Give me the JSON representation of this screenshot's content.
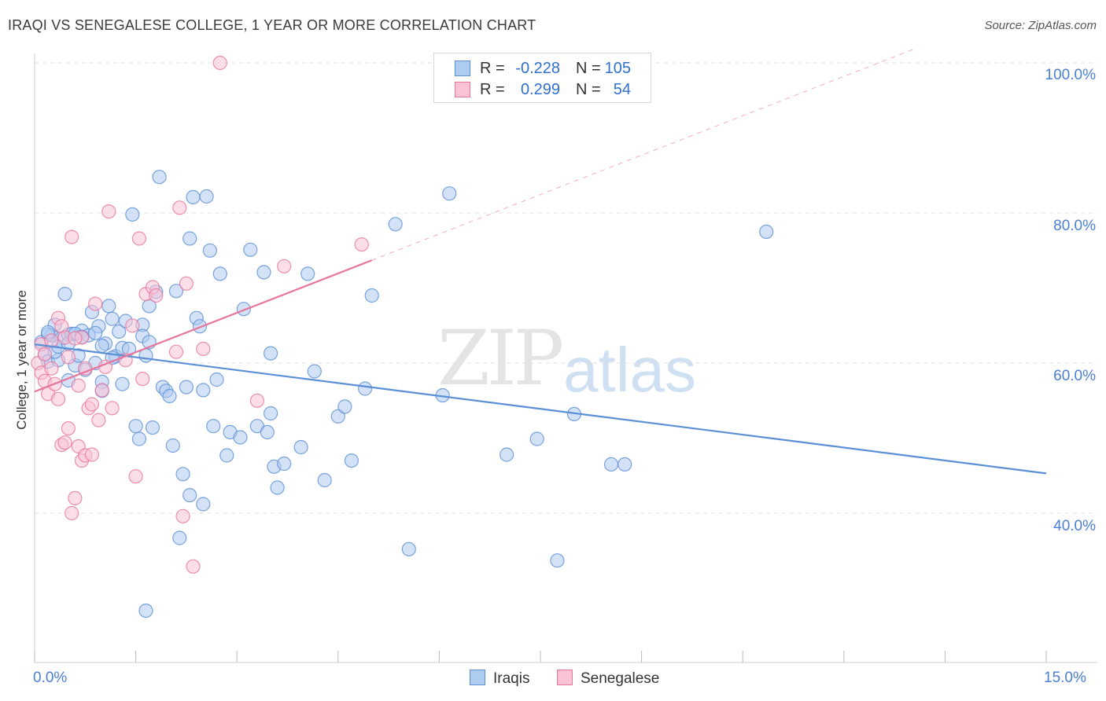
{
  "title": "IRAQI VS SENEGALESE COLLEGE, 1 YEAR OR MORE CORRELATION CHART",
  "source": "Source: ZipAtlas.com",
  "watermark": {
    "zip": "ZIP",
    "atlas": "atlas"
  },
  "stats": [
    {
      "r_label": "R =",
      "r_value": "-0.228",
      "n_label": "N =",
      "n_value": "105",
      "color": "#aecbf0",
      "border": "#5b8fd6"
    },
    {
      "r_label": "R =",
      "r_value": "0.299",
      "n_label": "N =",
      "n_value": "54",
      "color": "#f9c3d5",
      "border": "#e8769c"
    }
  ],
  "legend": [
    {
      "label": "Iraqis",
      "color": "#aecbf0",
      "border": "#5b8fd6"
    },
    {
      "label": "Senegalese",
      "color": "#f9c3d5",
      "border": "#e8769c"
    }
  ],
  "chart_data": {
    "type": "scatter",
    "title": "IRAQI VS SENEGALESE COLLEGE, 1 YEAR OR MORE CORRELATION CHART",
    "xlabel": "",
    "ylabel": "College, 1 year or more",
    "xlim": [
      0,
      15
    ],
    "ylim": [
      20,
      102
    ],
    "x_tick_labels": [
      "0.0%",
      "15.0%"
    ],
    "y_ticks": [
      40,
      60,
      80,
      100
    ],
    "y_tick_labels": [
      "40.0%",
      "60.0%",
      "80.0%",
      "100.0%"
    ],
    "grid": true,
    "legend_position": "bottom-center",
    "series": [
      {
        "name": "Iraqis",
        "color": "#5b8fd6",
        "fill": "#aecbf0",
        "trend": {
          "x": [
            0.0,
            15.0
          ],
          "y": [
            62.5,
            45.3
          ]
        },
        "points": [
          [
            0.1,
            62.8
          ],
          [
            0.15,
            61.1
          ],
          [
            0.2,
            60.2
          ],
          [
            0.25,
            63.7
          ],
          [
            0.3,
            65.1
          ],
          [
            0.35,
            60.4
          ],
          [
            0.4,
            63.3
          ],
          [
            0.45,
            69.2
          ],
          [
            0.5,
            57.7
          ],
          [
            0.5,
            63.8
          ],
          [
            0.55,
            63.9
          ],
          [
            0.6,
            59.7
          ],
          [
            0.65,
            61.0
          ],
          [
            0.7,
            64.3
          ],
          [
            0.75,
            59.1
          ],
          [
            0.8,
            63.7
          ],
          [
            0.85,
            66.8
          ],
          [
            0.9,
            60.0
          ],
          [
            0.95,
            64.9
          ],
          [
            1.0,
            57.5
          ],
          [
            1.0,
            56.3
          ],
          [
            1.05,
            62.6
          ],
          [
            1.1,
            67.6
          ],
          [
            1.15,
            65.9
          ],
          [
            1.2,
            60.9
          ],
          [
            1.25,
            64.2
          ],
          [
            1.3,
            57.2
          ],
          [
            1.3,
            62.0
          ],
          [
            1.35,
            65.6
          ],
          [
            1.4,
            61.9
          ],
          [
            1.45,
            79.8
          ],
          [
            1.5,
            51.6
          ],
          [
            1.55,
            49.9
          ],
          [
            1.6,
            65.1
          ],
          [
            1.6,
            63.6
          ],
          [
            1.65,
            61.0
          ],
          [
            1.7,
            67.6
          ],
          [
            1.7,
            62.8
          ],
          [
            1.65,
            27.0
          ],
          [
            1.75,
            51.4
          ],
          [
            1.8,
            69.5
          ],
          [
            1.85,
            84.8
          ],
          [
            1.9,
            56.8
          ],
          [
            1.95,
            56.3
          ],
          [
            2.0,
            55.6
          ],
          [
            2.05,
            49.0
          ],
          [
            2.1,
            69.6
          ],
          [
            2.15,
            36.7
          ],
          [
            2.2,
            45.2
          ],
          [
            2.25,
            56.8
          ],
          [
            2.3,
            76.6
          ],
          [
            2.3,
            42.4
          ],
          [
            2.35,
            82.1
          ],
          [
            2.4,
            66.0
          ],
          [
            2.45,
            64.9
          ],
          [
            2.5,
            56.4
          ],
          [
            2.5,
            41.2
          ],
          [
            2.55,
            82.2
          ],
          [
            2.6,
            75.0
          ],
          [
            2.65,
            51.6
          ],
          [
            2.7,
            57.8
          ],
          [
            2.75,
            71.9
          ],
          [
            2.85,
            47.7
          ],
          [
            2.9,
            50.8
          ],
          [
            3.05,
            50.1
          ],
          [
            3.1,
            67.2
          ],
          [
            3.2,
            75.1
          ],
          [
            3.3,
            51.6
          ],
          [
            3.4,
            72.1
          ],
          [
            3.45,
            50.8
          ],
          [
            3.5,
            53.3
          ],
          [
            3.5,
            61.3
          ],
          [
            3.55,
            46.2
          ],
          [
            3.6,
            43.4
          ],
          [
            3.7,
            46.6
          ],
          [
            3.95,
            48.8
          ],
          [
            4.05,
            71.9
          ],
          [
            4.15,
            58.9
          ],
          [
            4.3,
            44.4
          ],
          [
            4.5,
            52.9
          ],
          [
            4.6,
            54.2
          ],
          [
            4.7,
            47.0
          ],
          [
            4.9,
            56.6
          ],
          [
            5.0,
            69.0
          ],
          [
            5.35,
            78.5
          ],
          [
            5.55,
            35.2
          ],
          [
            6.05,
            55.7
          ],
          [
            6.15,
            82.6
          ],
          [
            7.0,
            47.8
          ],
          [
            7.45,
            49.9
          ],
          [
            7.75,
            33.7
          ],
          [
            8.0,
            53.2
          ],
          [
            8.55,
            46.5
          ],
          [
            8.75,
            46.5
          ],
          [
            10.85,
            77.5
          ],
          [
            0.2,
            63.8
          ],
          [
            0.3,
            61.5
          ],
          [
            0.6,
            63.9
          ],
          [
            0.9,
            64.0
          ],
          [
            1.15,
            60.7
          ],
          [
            0.2,
            64.1
          ],
          [
            0.35,
            62.2
          ],
          [
            0.5,
            62.6
          ],
          [
            0.7,
            63.5
          ],
          [
            1.0,
            62.3
          ]
        ]
      },
      {
        "name": "Senegalese",
        "color": "#e8769c",
        "fill": "#f9c3d5",
        "trend": {
          "x": [
            0.0,
            5.0
          ],
          "y": [
            56.2,
            73.7
          ]
        },
        "trend_dashed": {
          "x": [
            5.0,
            15.0
          ],
          "y": [
            73.7,
            108.7
          ]
        },
        "points": [
          [
            0.05,
            60.0
          ],
          [
            0.1,
            58.7
          ],
          [
            0.1,
            62.5
          ],
          [
            0.15,
            57.6
          ],
          [
            0.2,
            55.9
          ],
          [
            0.25,
            59.3
          ],
          [
            0.3,
            57.2
          ],
          [
            0.35,
            66.0
          ],
          [
            0.35,
            55.2
          ],
          [
            0.4,
            64.9
          ],
          [
            0.45,
            63.4
          ],
          [
            0.4,
            49.1
          ],
          [
            0.45,
            49.4
          ],
          [
            0.5,
            51.3
          ],
          [
            0.5,
            60.8
          ],
          [
            0.55,
            76.8
          ],
          [
            0.55,
            40.0
          ],
          [
            0.6,
            42.0
          ],
          [
            0.65,
            57.0
          ],
          [
            0.65,
            48.9
          ],
          [
            0.7,
            63.4
          ],
          [
            0.7,
            47.0
          ],
          [
            0.75,
            47.7
          ],
          [
            0.75,
            59.3
          ],
          [
            0.8,
            54.0
          ],
          [
            0.85,
            54.5
          ],
          [
            0.85,
            47.8
          ],
          [
            0.9,
            67.9
          ],
          [
            0.95,
            52.4
          ],
          [
            1.0,
            56.4
          ],
          [
            1.05,
            59.5
          ],
          [
            1.1,
            80.2
          ],
          [
            1.15,
            54.0
          ],
          [
            1.35,
            60.4
          ],
          [
            1.45,
            65.0
          ],
          [
            1.5,
            44.9
          ],
          [
            1.55,
            76.6
          ],
          [
            1.6,
            57.9
          ],
          [
            1.65,
            69.2
          ],
          [
            1.75,
            70.1
          ],
          [
            1.8,
            69.0
          ],
          [
            2.1,
            61.5
          ],
          [
            2.15,
            80.7
          ],
          [
            2.2,
            39.6
          ],
          [
            2.25,
            70.6
          ],
          [
            2.35,
            32.9
          ],
          [
            2.5,
            61.9
          ],
          [
            2.75,
            100.0
          ],
          [
            3.3,
            55.0
          ],
          [
            3.7,
            72.9
          ],
          [
            4.85,
            75.8
          ],
          [
            0.15,
            61.2
          ],
          [
            0.25,
            63.0
          ],
          [
            0.6,
            63.3
          ]
        ]
      }
    ]
  }
}
